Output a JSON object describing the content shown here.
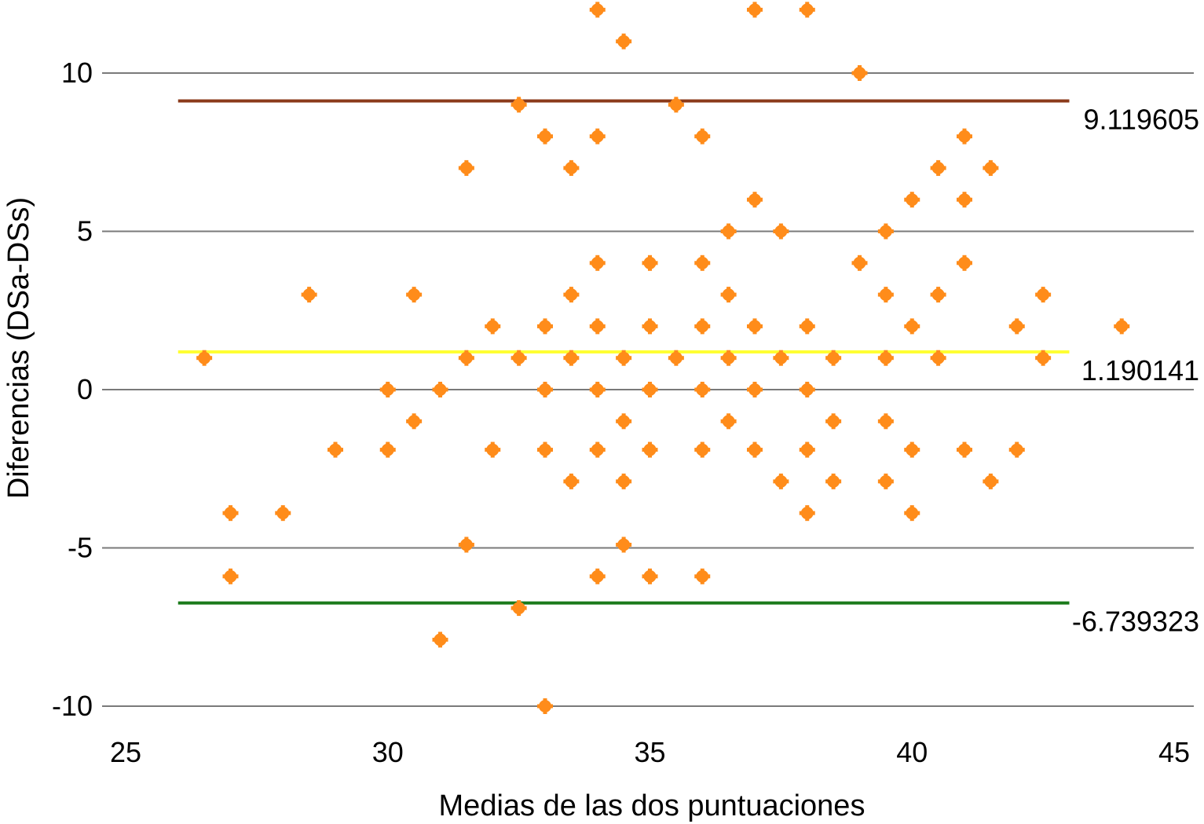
{
  "chart_data": {
    "type": "scatter",
    "title": "",
    "xlabel": "Medias de las dos puntuaciones",
    "ylabel": "Diferencias (DSa-DSs)",
    "xlim": [
      25,
      45
    ],
    "ylim": [
      -11,
      12.2
    ],
    "x_ticks": [
      25,
      30,
      35,
      40,
      45
    ],
    "x_tick_labels": [
      "25",
      "30",
      "35",
      "40",
      "45"
    ],
    "y_ticks": [
      -10,
      -5,
      0,
      5,
      10
    ],
    "y_tick_labels": [
      "-10",
      "-5",
      "0",
      "5",
      "10"
    ],
    "grid": "horizontal",
    "legend": "none",
    "point_color": "#FF8C1A",
    "reference_lines": [
      {
        "value": 9.119605,
        "label": "9.119605",
        "color": "#8B3A1A",
        "x_start": 26,
        "x_end": 43
      },
      {
        "value": 1.190141,
        "label": "1.190141",
        "color": "#FFFF33",
        "x_start": 26,
        "x_end": 43
      },
      {
        "value": -6.739323,
        "label": "-6.739323",
        "color": "#1A7A1A",
        "x_start": 26,
        "x_end": 43
      }
    ],
    "points": [
      {
        "x": 34,
        "y": 12
      },
      {
        "x": 37,
        "y": 12
      },
      {
        "x": 38,
        "y": 12
      },
      {
        "x": 34.5,
        "y": 11
      },
      {
        "x": 39,
        "y": 10
      },
      {
        "x": 32.5,
        "y": 9
      },
      {
        "x": 35.5,
        "y": 9
      },
      {
        "x": 33,
        "y": 8
      },
      {
        "x": 34,
        "y": 8
      },
      {
        "x": 36,
        "y": 8
      },
      {
        "x": 41,
        "y": 8
      },
      {
        "x": 31.5,
        "y": 7
      },
      {
        "x": 33.5,
        "y": 7
      },
      {
        "x": 40.5,
        "y": 7
      },
      {
        "x": 41.5,
        "y": 7
      },
      {
        "x": 37,
        "y": 6
      },
      {
        "x": 40,
        "y": 6
      },
      {
        "x": 41,
        "y": 6
      },
      {
        "x": 36.5,
        "y": 5
      },
      {
        "x": 37.5,
        "y": 5
      },
      {
        "x": 39.5,
        "y": 5
      },
      {
        "x": 34,
        "y": 4
      },
      {
        "x": 35,
        "y": 4
      },
      {
        "x": 36,
        "y": 4
      },
      {
        "x": 39,
        "y": 4
      },
      {
        "x": 41,
        "y": 4
      },
      {
        "x": 28.5,
        "y": 3
      },
      {
        "x": 30.5,
        "y": 3
      },
      {
        "x": 33.5,
        "y": 3
      },
      {
        "x": 36.5,
        "y": 3
      },
      {
        "x": 39.5,
        "y": 3
      },
      {
        "x": 40.5,
        "y": 3
      },
      {
        "x": 42.5,
        "y": 3
      },
      {
        "x": 32,
        "y": 2
      },
      {
        "x": 33,
        "y": 2
      },
      {
        "x": 34,
        "y": 2
      },
      {
        "x": 35,
        "y": 2
      },
      {
        "x": 36,
        "y": 2
      },
      {
        "x": 37,
        "y": 2
      },
      {
        "x": 38,
        "y": 2
      },
      {
        "x": 40,
        "y": 2
      },
      {
        "x": 42,
        "y": 2
      },
      {
        "x": 44,
        "y": 2
      },
      {
        "x": 26.5,
        "y": 1
      },
      {
        "x": 31.5,
        "y": 1
      },
      {
        "x": 32.5,
        "y": 1
      },
      {
        "x": 33.5,
        "y": 1
      },
      {
        "x": 34.5,
        "y": 1
      },
      {
        "x": 35.5,
        "y": 1
      },
      {
        "x": 36.5,
        "y": 1
      },
      {
        "x": 37.5,
        "y": 1
      },
      {
        "x": 38.5,
        "y": 1
      },
      {
        "x": 39.5,
        "y": 1
      },
      {
        "x": 40.5,
        "y": 1
      },
      {
        "x": 42.5,
        "y": 1
      },
      {
        "x": 30,
        "y": 0
      },
      {
        "x": 31,
        "y": 0
      },
      {
        "x": 33,
        "y": 0
      },
      {
        "x": 34,
        "y": 0
      },
      {
        "x": 35,
        "y": 0
      },
      {
        "x": 36,
        "y": 0
      },
      {
        "x": 37,
        "y": 0
      },
      {
        "x": 38,
        "y": 0
      },
      {
        "x": 30.5,
        "y": -1
      },
      {
        "x": 34.5,
        "y": -1
      },
      {
        "x": 36.5,
        "y": -1
      },
      {
        "x": 38.5,
        "y": -1
      },
      {
        "x": 39.5,
        "y": -1
      },
      {
        "x": 29,
        "y": -1.9
      },
      {
        "x": 30,
        "y": -1.9
      },
      {
        "x": 32,
        "y": -1.9
      },
      {
        "x": 33,
        "y": -1.9
      },
      {
        "x": 34,
        "y": -1.9
      },
      {
        "x": 35,
        "y": -1.9
      },
      {
        "x": 36,
        "y": -1.9
      },
      {
        "x": 37,
        "y": -1.9
      },
      {
        "x": 38,
        "y": -1.9
      },
      {
        "x": 40,
        "y": -1.9
      },
      {
        "x": 41,
        "y": -1.9
      },
      {
        "x": 42,
        "y": -1.9
      },
      {
        "x": 33.5,
        "y": -2.9
      },
      {
        "x": 34.5,
        "y": -2.9
      },
      {
        "x": 37.5,
        "y": -2.9
      },
      {
        "x": 38.5,
        "y": -2.9
      },
      {
        "x": 39.5,
        "y": -2.9
      },
      {
        "x": 41.5,
        "y": -2.9
      },
      {
        "x": 27,
        "y": -3.9
      },
      {
        "x": 28,
        "y": -3.9
      },
      {
        "x": 38,
        "y": -3.9
      },
      {
        "x": 40,
        "y": -3.9
      },
      {
        "x": 31.5,
        "y": -4.9
      },
      {
        "x": 34.5,
        "y": -4.9
      },
      {
        "x": 27,
        "y": -5.9
      },
      {
        "x": 34,
        "y": -5.9
      },
      {
        "x": 35,
        "y": -5.9
      },
      {
        "x": 36,
        "y": -5.9
      },
      {
        "x": 32.5,
        "y": -6.9
      },
      {
        "x": 31,
        "y": -7.9
      },
      {
        "x": 33,
        "y": -10
      }
    ]
  }
}
